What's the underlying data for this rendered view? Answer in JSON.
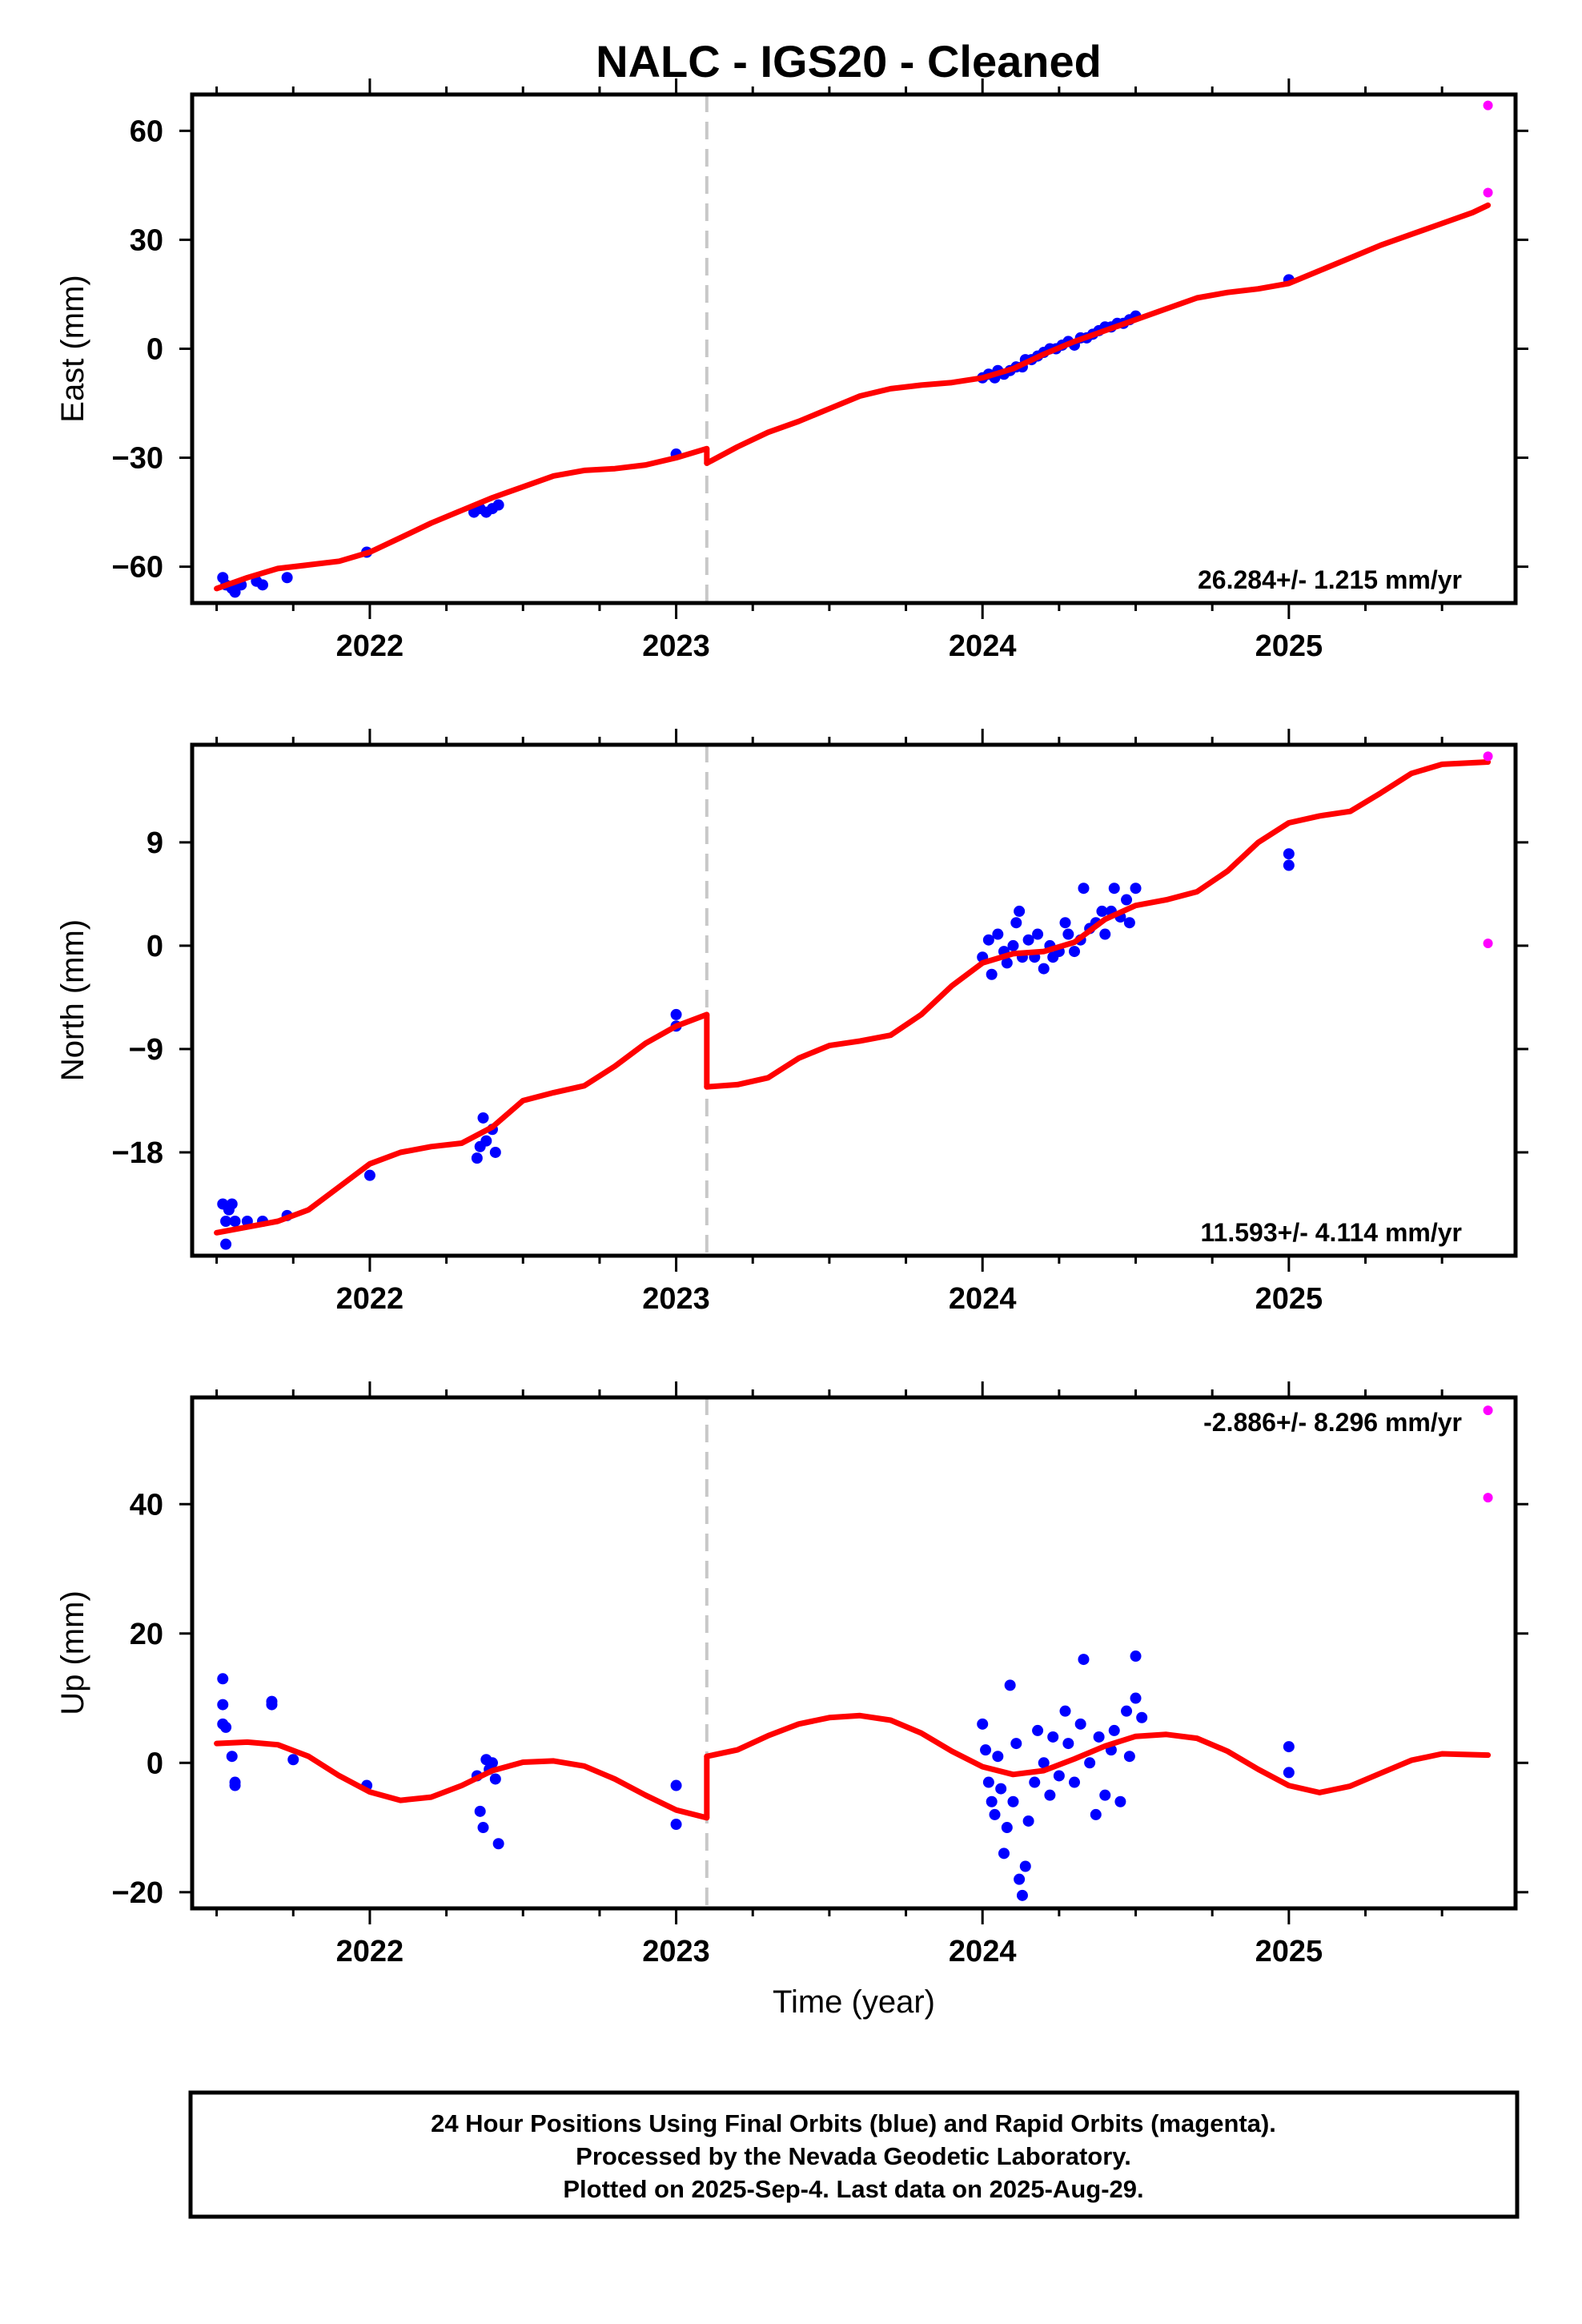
{
  "title": "NALC  - IGS20 - Cleaned",
  "colors": {
    "final": "#0000ff",
    "rapid": "#ff00ff",
    "model": "#ff0000",
    "offset": "#c8c8c8"
  },
  "footer": {
    "line1": "24 Hour Positions Using Final Orbits (blue) and Rapid Orbits (magenta).",
    "line2": "Processed by the Nevada Geodetic Laboratory.",
    "line3": "Plotted on 2025-Sep-4. Last data on 2025-Aug-29."
  },
  "chart_data": [
    {
      "type": "scatter",
      "ylabel": "East (mm)",
      "xlabel": "",
      "rate": "26.284+/- 1.215 mm/yr",
      "xlim": [
        2021.42,
        2025.74
      ],
      "ylim": [
        -70,
        70
      ],
      "yticks": [
        -60,
        -30,
        0,
        30,
        60
      ],
      "xticks": [
        2022,
        2023,
        2024,
        2025
      ],
      "offset_line": 2023.1,
      "final": [
        [
          2021.52,
          -63
        ],
        [
          2021.53,
          -65
        ],
        [
          2021.55,
          -66
        ],
        [
          2021.56,
          -67
        ],
        [
          2021.58,
          -65
        ],
        [
          2021.63,
          -64
        ],
        [
          2021.65,
          -65
        ],
        [
          2021.73,
          -63
        ],
        [
          2021.99,
          -56
        ],
        [
          2022.34,
          -45
        ],
        [
          2022.36,
          -44
        ],
        [
          2022.38,
          -45
        ],
        [
          2022.4,
          -44
        ],
        [
          2022.42,
          -43
        ],
        [
          2023.0,
          -29
        ],
        [
          2024.0,
          -8
        ],
        [
          2024.02,
          -7
        ],
        [
          2024.04,
          -8
        ],
        [
          2024.05,
          -6
        ],
        [
          2024.07,
          -7
        ],
        [
          2024.09,
          -6
        ],
        [
          2024.11,
          -5
        ],
        [
          2024.13,
          -5
        ],
        [
          2024.14,
          -3
        ],
        [
          2024.16,
          -3
        ],
        [
          2024.18,
          -2
        ],
        [
          2024.2,
          -1
        ],
        [
          2024.22,
          0
        ],
        [
          2024.24,
          0
        ],
        [
          2024.26,
          1
        ],
        [
          2024.28,
          2
        ],
        [
          2024.3,
          1
        ],
        [
          2024.32,
          3
        ],
        [
          2024.34,
          3
        ],
        [
          2024.36,
          4
        ],
        [
          2024.38,
          5
        ],
        [
          2024.4,
          6
        ],
        [
          2024.42,
          6
        ],
        [
          2024.44,
          7
        ],
        [
          2024.46,
          7
        ],
        [
          2024.48,
          8
        ],
        [
          2024.5,
          9
        ],
        [
          2025.0,
          19
        ]
      ],
      "rapid": [
        [
          2025.65,
          67
        ],
        [
          2025.65,
          43
        ]
      ],
      "model": [
        [
          2021.5,
          -66
        ],
        [
          2021.6,
          -63
        ],
        [
          2021.7,
          -60.5
        ],
        [
          2021.8,
          -59.5
        ],
        [
          2021.9,
          -58.5
        ],
        [
          2022.0,
          -56
        ],
        [
          2022.1,
          -52
        ],
        [
          2022.2,
          -48
        ],
        [
          2022.3,
          -44.5
        ],
        [
          2022.4,
          -41
        ],
        [
          2022.5,
          -38
        ],
        [
          2022.6,
          -35
        ],
        [
          2022.7,
          -33.5
        ],
        [
          2022.8,
          -33
        ],
        [
          2022.9,
          -32
        ],
        [
          2023.0,
          -30
        ],
        [
          2023.1,
          -27.5
        ],
        [
          2023.1,
          -31.5
        ],
        [
          2023.2,
          -27
        ],
        [
          2023.3,
          -23
        ],
        [
          2023.4,
          -20
        ],
        [
          2023.5,
          -16.5
        ],
        [
          2023.6,
          -13
        ],
        [
          2023.7,
          -11
        ],
        [
          2023.8,
          -10
        ],
        [
          2023.9,
          -9.3
        ],
        [
          2024.0,
          -8
        ],
        [
          2024.1,
          -5.5
        ],
        [
          2024.2,
          -1.5
        ],
        [
          2024.3,
          2
        ],
        [
          2024.4,
          5
        ],
        [
          2024.5,
          8
        ],
        [
          2024.6,
          11
        ],
        [
          2024.7,
          14
        ],
        [
          2024.8,
          15.5
        ],
        [
          2024.9,
          16.5
        ],
        [
          2025.0,
          18
        ],
        [
          2025.1,
          21.5
        ],
        [
          2025.2,
          25
        ],
        [
          2025.3,
          28.5
        ],
        [
          2025.4,
          31.5
        ],
        [
          2025.5,
          34.5
        ],
        [
          2025.6,
          37.5
        ],
        [
          2025.65,
          39.5
        ]
      ]
    },
    {
      "type": "scatter",
      "ylabel": "North (mm)",
      "xlabel": "",
      "rate": "11.593+/- 4.114 mm/yr",
      "xlim": [
        2021.42,
        2025.74
      ],
      "ylim": [
        -27,
        17.5
      ],
      "yticks": [
        -18,
        -9,
        0,
        9
      ],
      "xticks": [
        2022,
        2023,
        2024,
        2025
      ],
      "offset_line": 2023.1,
      "final": [
        [
          2021.52,
          -22.5
        ],
        [
          2021.53,
          -24
        ],
        [
          2021.54,
          -23
        ],
        [
          2021.55,
          -22.5
        ],
        [
          2021.56,
          -24
        ],
        [
          2021.53,
          -26
        ],
        [
          2021.6,
          -24
        ],
        [
          2021.65,
          -24
        ],
        [
          2021.73,
          -23.5
        ],
        [
          2022.0,
          -20
        ],
        [
          2022.35,
          -18.5
        ],
        [
          2022.36,
          -17.5
        ],
        [
          2022.37,
          -15
        ],
        [
          2022.38,
          -17
        ],
        [
          2022.4,
          -16
        ],
        [
          2022.41,
          -18
        ],
        [
          2023.0,
          -7
        ],
        [
          2023.0,
          -6
        ],
        [
          2024.0,
          -1
        ],
        [
          2024.02,
          0.5
        ],
        [
          2024.03,
          -2.5
        ],
        [
          2024.05,
          1
        ],
        [
          2024.07,
          -0.5
        ],
        [
          2024.08,
          -1.5
        ],
        [
          2024.1,
          0
        ],
        [
          2024.11,
          2
        ],
        [
          2024.12,
          3
        ],
        [
          2024.13,
          -1
        ],
        [
          2024.15,
          0.5
        ],
        [
          2024.17,
          -1
        ],
        [
          2024.18,
          1
        ],
        [
          2024.2,
          -2
        ],
        [
          2024.22,
          0
        ],
        [
          2024.23,
          -1
        ],
        [
          2024.25,
          -0.5
        ],
        [
          2024.27,
          2
        ],
        [
          2024.28,
          1
        ],
        [
          2024.3,
          -0.5
        ],
        [
          2024.32,
          0.5
        ],
        [
          2024.33,
          5
        ],
        [
          2024.35,
          1.5
        ],
        [
          2024.37,
          2
        ],
        [
          2024.39,
          3
        ],
        [
          2024.4,
          1
        ],
        [
          2024.42,
          3
        ],
        [
          2024.43,
          5
        ],
        [
          2024.45,
          2.5
        ],
        [
          2024.47,
          4
        ],
        [
          2024.48,
          2
        ],
        [
          2024.5,
          5
        ],
        [
          2025.0,
          8
        ],
        [
          2025.0,
          7
        ]
      ],
      "rapid": [
        [
          2025.65,
          16.5
        ],
        [
          2025.65,
          0.2
        ]
      ],
      "model": [
        [
          2021.5,
          -25
        ],
        [
          2021.6,
          -24.5
        ],
        [
          2021.7,
          -24
        ],
        [
          2021.8,
          -23
        ],
        [
          2021.9,
          -21
        ],
        [
          2022.0,
          -19
        ],
        [
          2022.1,
          -18
        ],
        [
          2022.2,
          -17.5
        ],
        [
          2022.3,
          -17.2
        ],
        [
          2022.4,
          -15.8
        ],
        [
          2022.5,
          -13.5
        ],
        [
          2022.6,
          -12.8
        ],
        [
          2022.7,
          -12.2
        ],
        [
          2022.8,
          -10.5
        ],
        [
          2022.9,
          -8.5
        ],
        [
          2023.0,
          -7
        ],
        [
          2023.1,
          -6
        ],
        [
          2023.1,
          -12.3
        ],
        [
          2023.2,
          -12.1
        ],
        [
          2023.3,
          -11.5
        ],
        [
          2023.4,
          -9.8
        ],
        [
          2023.5,
          -8.7
        ],
        [
          2023.6,
          -8.3
        ],
        [
          2023.7,
          -7.8
        ],
        [
          2023.8,
          -6
        ],
        [
          2023.9,
          -3.5
        ],
        [
          2024.0,
          -1.5
        ],
        [
          2024.1,
          -0.7
        ],
        [
          2024.2,
          -0.5
        ],
        [
          2024.3,
          0.3
        ],
        [
          2024.4,
          2.3
        ],
        [
          2024.5,
          3.5
        ],
        [
          2024.6,
          4
        ],
        [
          2024.7,
          4.7
        ],
        [
          2024.8,
          6.5
        ],
        [
          2024.9,
          9
        ],
        [
          2025.0,
          10.7
        ],
        [
          2025.1,
          11.3
        ],
        [
          2025.2,
          11.7
        ],
        [
          2025.3,
          13.3
        ],
        [
          2025.4,
          15
        ],
        [
          2025.5,
          15.8
        ],
        [
          2025.65,
          16
        ]
      ]
    },
    {
      "type": "scatter",
      "ylabel": "Up (mm)",
      "xlabel": "Time (year)",
      "rate": "-2.886+/- 8.296 mm/yr",
      "xlim": [
        2021.42,
        2025.74
      ],
      "ylim": [
        -22.5,
        56.5
      ],
      "yticks": [
        -20,
        0,
        20,
        40
      ],
      "xticks": [
        2022,
        2023,
        2024,
        2025
      ],
      "offset_line": 2023.1,
      "final": [
        [
          2021.52,
          13
        ],
        [
          2021.52,
          9
        ],
        [
          2021.52,
          6
        ],
        [
          2021.53,
          5.5
        ],
        [
          2021.55,
          1
        ],
        [
          2021.56,
          -3
        ],
        [
          2021.56,
          -3.5
        ],
        [
          2021.68,
          9.5
        ],
        [
          2021.68,
          9
        ],
        [
          2021.75,
          0.5
        ],
        [
          2021.99,
          -3.5
        ],
        [
          2022.35,
          -2
        ],
        [
          2022.36,
          -7.5
        ],
        [
          2022.37,
          -10
        ],
        [
          2022.38,
          0.5
        ],
        [
          2022.39,
          -1
        ],
        [
          2022.4,
          0
        ],
        [
          2022.41,
          -2.5
        ],
        [
          2022.42,
          -12.5
        ],
        [
          2023.0,
          -9.5
        ],
        [
          2023.0,
          -3.5
        ],
        [
          2024.0,
          6
        ],
        [
          2024.01,
          2
        ],
        [
          2024.02,
          -3
        ],
        [
          2024.03,
          -6
        ],
        [
          2024.04,
          -8
        ],
        [
          2024.05,
          1
        ],
        [
          2024.06,
          -4
        ],
        [
          2024.07,
          -14
        ],
        [
          2024.08,
          -10
        ],
        [
          2024.09,
          12
        ],
        [
          2024.1,
          -6
        ],
        [
          2024.11,
          3
        ],
        [
          2024.12,
          -18
        ],
        [
          2024.13,
          -20.5
        ],
        [
          2024.14,
          -16
        ],
        [
          2024.15,
          -9
        ],
        [
          2024.17,
          -3
        ],
        [
          2024.18,
          5
        ],
        [
          2024.2,
          0
        ],
        [
          2024.22,
          -5
        ],
        [
          2024.23,
          4
        ],
        [
          2024.25,
          -2
        ],
        [
          2024.27,
          8
        ],
        [
          2024.28,
          3
        ],
        [
          2024.3,
          -3
        ],
        [
          2024.32,
          6
        ],
        [
          2024.33,
          16
        ],
        [
          2024.35,
          0
        ],
        [
          2024.37,
          -8
        ],
        [
          2024.38,
          4
        ],
        [
          2024.4,
          -5
        ],
        [
          2024.42,
          2
        ],
        [
          2024.43,
          5
        ],
        [
          2024.45,
          -6
        ],
        [
          2024.47,
          8
        ],
        [
          2024.48,
          1
        ],
        [
          2024.5,
          10
        ],
        [
          2024.5,
          16.5
        ],
        [
          2024.52,
          7
        ],
        [
          2025.0,
          -1.5
        ],
        [
          2025.0,
          2.5
        ]
      ],
      "rapid": [
        [
          2025.65,
          54.5
        ],
        [
          2025.65,
          41
        ]
      ],
      "model": [
        [
          2021.5,
          3
        ],
        [
          2021.6,
          3.2
        ],
        [
          2021.7,
          2.8
        ],
        [
          2021.8,
          1
        ],
        [
          2021.9,
          -2
        ],
        [
          2022.0,
          -4.5
        ],
        [
          2022.1,
          -5.8
        ],
        [
          2022.2,
          -5.3
        ],
        [
          2022.3,
          -3.5
        ],
        [
          2022.4,
          -1.2
        ],
        [
          2022.5,
          0.1
        ],
        [
          2022.6,
          0.3
        ],
        [
          2022.7,
          -0.5
        ],
        [
          2022.8,
          -2.5
        ],
        [
          2022.9,
          -5
        ],
        [
          2023.0,
          -7.3
        ],
        [
          2023.1,
          -8.5
        ],
        [
          2023.1,
          1
        ],
        [
          2023.2,
          2
        ],
        [
          2023.3,
          4.2
        ],
        [
          2023.4,
          6
        ],
        [
          2023.5,
          7
        ],
        [
          2023.6,
          7.3
        ],
        [
          2023.7,
          6.6
        ],
        [
          2023.8,
          4.6
        ],
        [
          2023.9,
          1.8
        ],
        [
          2024.0,
          -0.6
        ],
        [
          2024.1,
          -1.8
        ],
        [
          2024.2,
          -1.2
        ],
        [
          2024.3,
          0.6
        ],
        [
          2024.4,
          2.6
        ],
        [
          2024.5,
          4.1
        ],
        [
          2024.6,
          4.4
        ],
        [
          2024.7,
          3.8
        ],
        [
          2024.8,
          1.8
        ],
        [
          2024.9,
          -1
        ],
        [
          2025.0,
          -3.5
        ],
        [
          2025.1,
          -4.6
        ],
        [
          2025.2,
          -3.6
        ],
        [
          2025.3,
          -1.6
        ],
        [
          2025.4,
          0.4
        ],
        [
          2025.5,
          1.4
        ],
        [
          2025.65,
          1.2
        ]
      ]
    }
  ]
}
